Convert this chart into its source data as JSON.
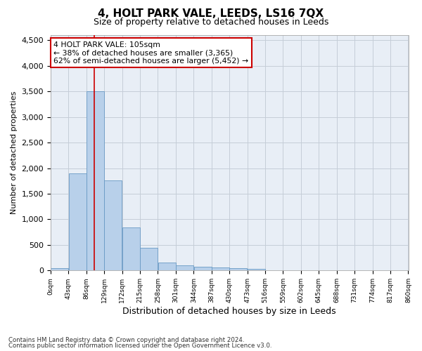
{
  "title": "4, HOLT PARK VALE, LEEDS, LS16 7QX",
  "subtitle": "Size of property relative to detached houses in Leeds",
  "xlabel": "Distribution of detached houses by size in Leeds",
  "ylabel": "Number of detached properties",
  "bar_color": "#b8d0ea",
  "bar_edge_color": "#6899c4",
  "background_color": "#e8eef6",
  "grid_color": "#c5cdd8",
  "annotation_box_color": "#cc0000",
  "annotation_text_line1": "4 HOLT PARK VALE: 105sqm",
  "annotation_text_line2": "← 38% of detached houses are smaller (3,365)",
  "annotation_text_line3": "62% of semi-detached houses are larger (5,452) →",
  "property_size_sqm": 105,
  "bin_edges": [
    0,
    43,
    86,
    129,
    172,
    215,
    258,
    301,
    344,
    387,
    430,
    473,
    516,
    559,
    602,
    645,
    688,
    731,
    774,
    817,
    860
  ],
  "bar_heights": [
    45,
    1900,
    3500,
    1760,
    840,
    450,
    160,
    100,
    70,
    55,
    40,
    30,
    0,
    0,
    0,
    0,
    0,
    0,
    0,
    0
  ],
  "ylim": [
    0,
    4600
  ],
  "yticks": [
    0,
    500,
    1000,
    1500,
    2000,
    2500,
    3000,
    3500,
    4000,
    4500
  ],
  "footer_line1": "Contains HM Land Registry data © Crown copyright and database right 2024.",
  "footer_line2": "Contains public sector information licensed under the Open Government Licence v3.0."
}
